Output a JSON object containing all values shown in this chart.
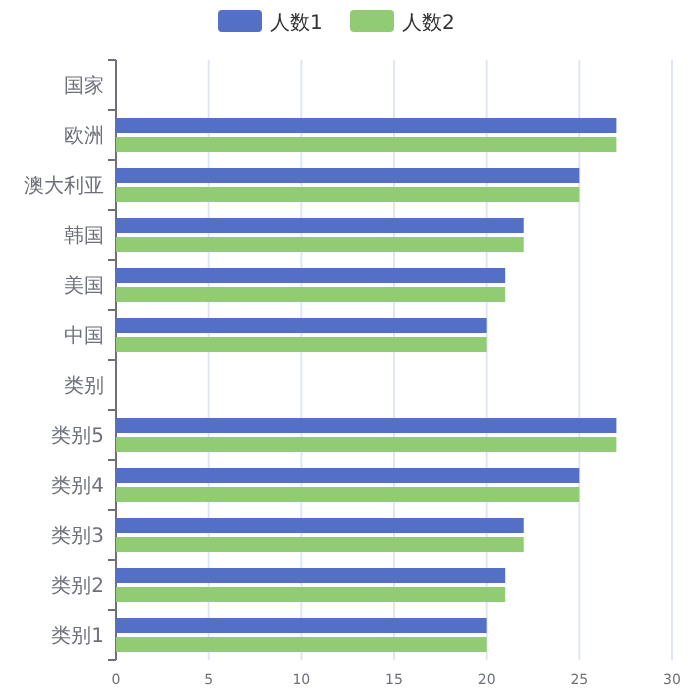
{
  "chart_data": {
    "type": "bar",
    "orientation": "horizontal",
    "categories": [
      "国家",
      "欧洲",
      "澳大利亚",
      "韩国",
      "美国",
      "中国",
      "类别",
      "类别5",
      "类别4",
      "类别3",
      "类别2",
      "类别1"
    ],
    "series": [
      {
        "name": "人数1",
        "color": "#5470c6",
        "values": [
          null,
          27,
          25,
          22,
          21,
          20,
          null,
          27,
          25,
          22,
          21,
          20
        ]
      },
      {
        "name": "人数2",
        "color": "#91cc75",
        "values": [
          null,
          27,
          25,
          22,
          21,
          20,
          null,
          27,
          25,
          22,
          21,
          20
        ]
      }
    ],
    "xlim": [
      0,
      30
    ],
    "xticks": [
      0,
      5,
      10,
      15,
      20,
      25,
      30
    ],
    "grid": "x",
    "legend": "top"
  }
}
